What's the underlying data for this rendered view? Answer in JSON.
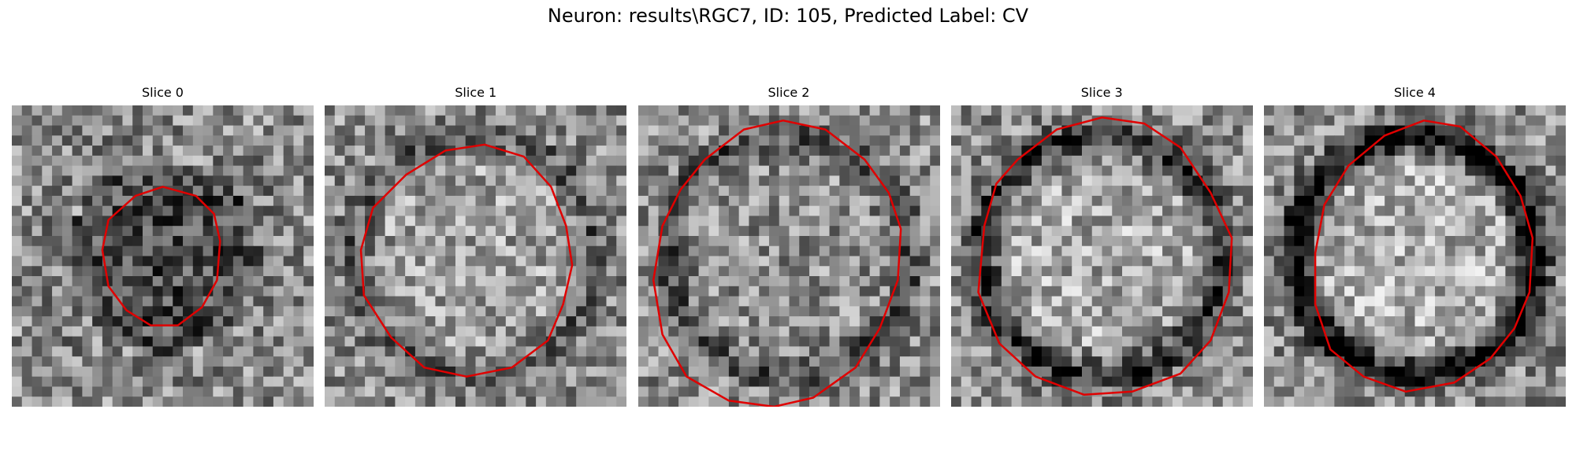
{
  "figure": {
    "title": "Neuron: results\\RGC7, ID: 105, Predicted Label: CV",
    "colormap": "gray",
    "contour_color": "#e00000"
  },
  "panels": [
    {
      "label": "Slice 0",
      "center_brightness": 0.3,
      "ring_strength": 0.05,
      "contour": [
        [
          0.41,
          0.3
        ],
        [
          0.5,
          0.27
        ],
        [
          0.61,
          0.3
        ],
        [
          0.67,
          0.36
        ],
        [
          0.69,
          0.45
        ],
        [
          0.68,
          0.58
        ],
        [
          0.63,
          0.67
        ],
        [
          0.55,
          0.73
        ],
        [
          0.46,
          0.73
        ],
        [
          0.38,
          0.68
        ],
        [
          0.32,
          0.6
        ],
        [
          0.3,
          0.48
        ],
        [
          0.32,
          0.38
        ]
      ]
    },
    {
      "label": "Slice 1",
      "center_brightness": 0.62,
      "ring_strength": 0.2,
      "contour": [
        [
          0.27,
          0.23
        ],
        [
          0.4,
          0.15
        ],
        [
          0.53,
          0.13
        ],
        [
          0.66,
          0.17
        ],
        [
          0.75,
          0.27
        ],
        [
          0.8,
          0.4
        ],
        [
          0.82,
          0.53
        ],
        [
          0.79,
          0.66
        ],
        [
          0.74,
          0.78
        ],
        [
          0.62,
          0.87
        ],
        [
          0.47,
          0.9
        ],
        [
          0.33,
          0.87
        ],
        [
          0.22,
          0.77
        ],
        [
          0.13,
          0.63
        ],
        [
          0.12,
          0.48
        ],
        [
          0.16,
          0.34
        ]
      ]
    },
    {
      "label": "Slice 2",
      "center_brightness": 0.56,
      "ring_strength": 0.25,
      "contour": [
        [
          0.22,
          0.18
        ],
        [
          0.35,
          0.08
        ],
        [
          0.48,
          0.05
        ],
        [
          0.62,
          0.08
        ],
        [
          0.75,
          0.18
        ],
        [
          0.83,
          0.29
        ],
        [
          0.87,
          0.41
        ],
        [
          0.86,
          0.58
        ],
        [
          0.8,
          0.74
        ],
        [
          0.72,
          0.87
        ],
        [
          0.58,
          0.97
        ],
        [
          0.45,
          1.0
        ],
        [
          0.3,
          0.98
        ],
        [
          0.16,
          0.9
        ],
        [
          0.08,
          0.76
        ],
        [
          0.05,
          0.58
        ],
        [
          0.08,
          0.4
        ],
        [
          0.14,
          0.28
        ]
      ]
    },
    {
      "label": "Slice 3",
      "center_brightness": 0.66,
      "ring_strength": 0.4,
      "contour": [
        [
          0.22,
          0.18
        ],
        [
          0.35,
          0.08
        ],
        [
          0.5,
          0.04
        ],
        [
          0.64,
          0.06
        ],
        [
          0.76,
          0.14
        ],
        [
          0.86,
          0.29
        ],
        [
          0.93,
          0.44
        ],
        [
          0.92,
          0.62
        ],
        [
          0.86,
          0.78
        ],
        [
          0.76,
          0.89
        ],
        [
          0.6,
          0.95
        ],
        [
          0.44,
          0.96
        ],
        [
          0.28,
          0.9
        ],
        [
          0.16,
          0.79
        ],
        [
          0.09,
          0.62
        ],
        [
          0.11,
          0.4
        ],
        [
          0.15,
          0.26
        ]
      ]
    },
    {
      "label": "Slice 4",
      "center_brightness": 0.68,
      "ring_strength": 0.55,
      "contour": [
        [
          0.28,
          0.2
        ],
        [
          0.4,
          0.1
        ],
        [
          0.53,
          0.05
        ],
        [
          0.65,
          0.07
        ],
        [
          0.77,
          0.17
        ],
        [
          0.85,
          0.3
        ],
        [
          0.89,
          0.44
        ],
        [
          0.88,
          0.62
        ],
        [
          0.83,
          0.74
        ],
        [
          0.75,
          0.84
        ],
        [
          0.63,
          0.92
        ],
        [
          0.47,
          0.95
        ],
        [
          0.33,
          0.9
        ],
        [
          0.22,
          0.81
        ],
        [
          0.17,
          0.66
        ],
        [
          0.17,
          0.49
        ],
        [
          0.2,
          0.33
        ]
      ]
    }
  ]
}
